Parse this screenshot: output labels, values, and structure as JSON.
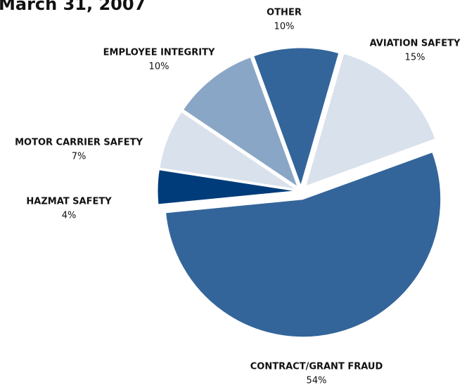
{
  "chart_data": {
    "type": "pie",
    "title": "March 31, 2007",
    "categories": [
      "OTHER",
      "AVIATION SAFETY",
      "CONTRACT/GRANT FRAUD",
      "HAZMAT SAFETY",
      "MOTOR CARRIER SAFETY",
      "EMPLOYEE INTEGRITY"
    ],
    "values": [
      10,
      15,
      54,
      4,
      7,
      10
    ],
    "value_labels": [
      "10%",
      "15%",
      "54%",
      "4%",
      "7%",
      "10%"
    ],
    "colors": [
      "#33659a",
      "#d9e1ec",
      "#33659a",
      "#003c7a",
      "#d9e1ec",
      "#8aa6c6"
    ]
  }
}
